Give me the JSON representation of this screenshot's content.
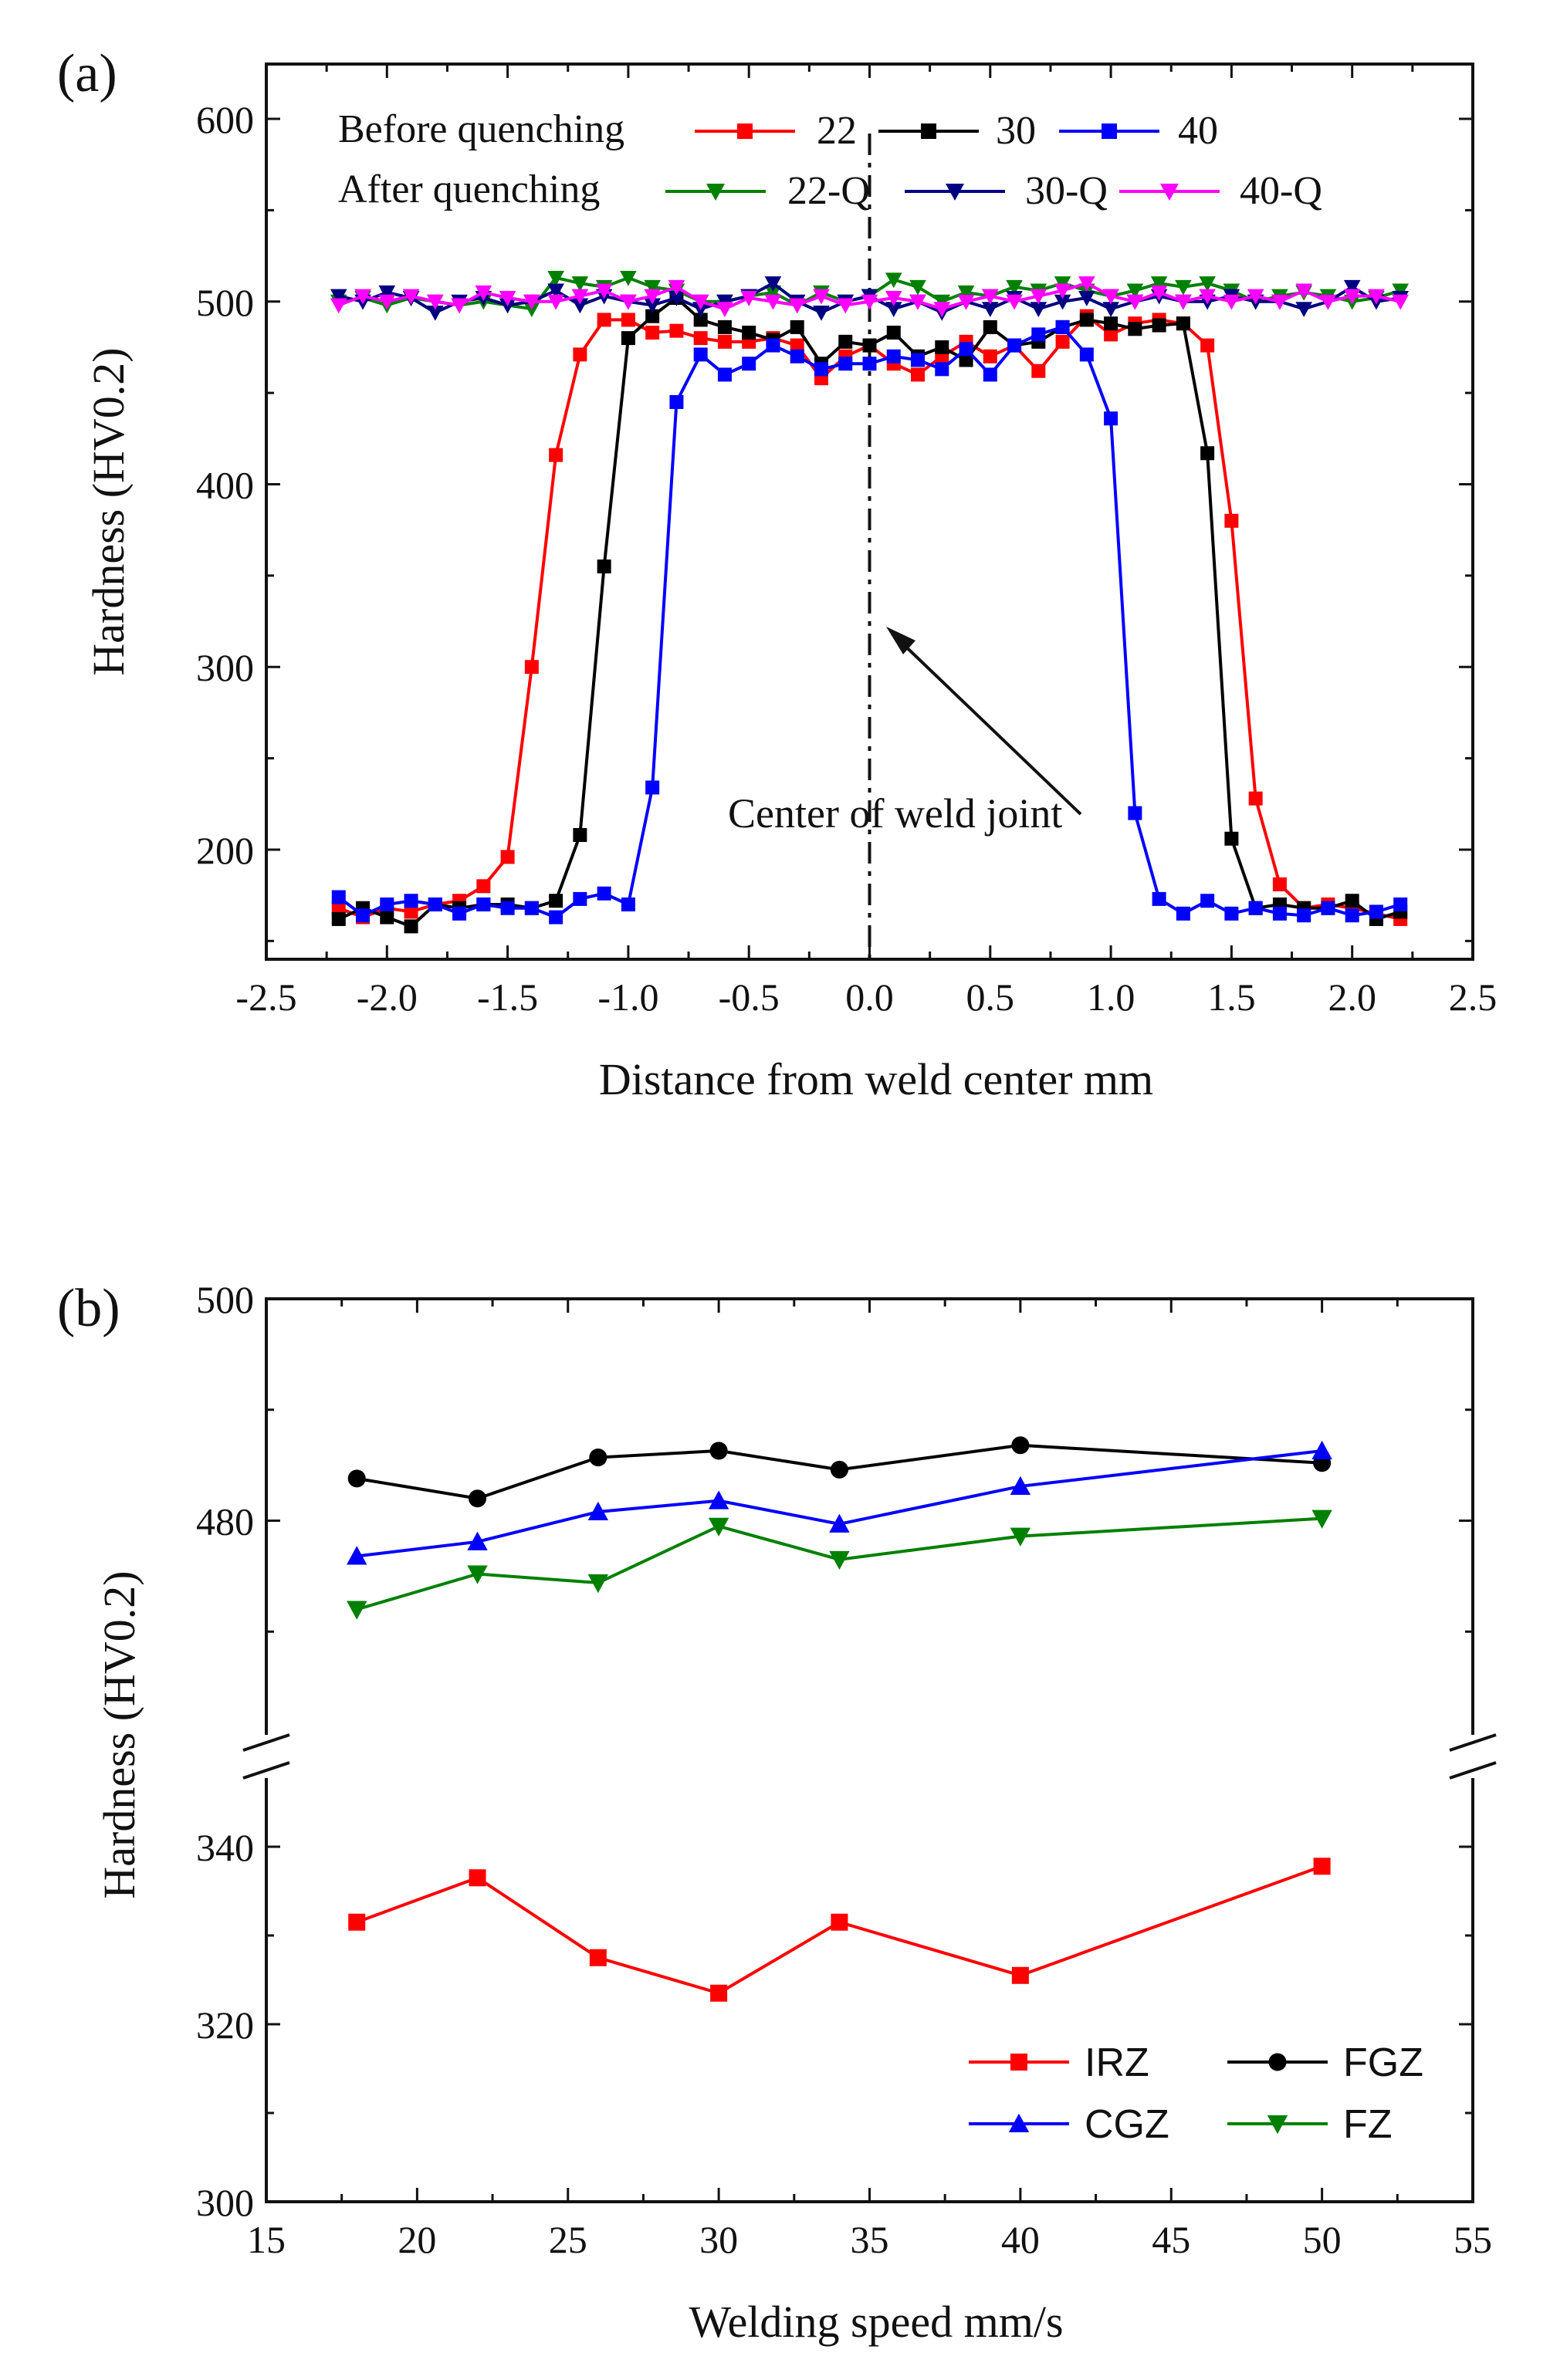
{
  "chart_data": [
    {
      "panel_label": "(a)",
      "type": "line",
      "xlabel": "Distance from weld center  mm",
      "ylabel": "Hardness (HV0.2)",
      "xlim": [
        -2.5,
        2.5
      ],
      "ylim": [
        140,
        630
      ],
      "xticks": [
        "-2.5",
        "-2.0",
        "-1.5",
        "-1.0",
        "-0.5",
        "0.0",
        "0.5",
        "1.0",
        "1.5",
        "2.0",
        "2.5"
      ],
      "yticks": [
        "200",
        "300",
        "400",
        "500",
        "600"
      ],
      "legend_groups": [
        {
          "title": "Before quenching",
          "series": [
            "22",
            "30",
            "40"
          ]
        },
        {
          "title": "After quenching",
          "series": [
            "22-Q",
            "30-Q",
            "40-Q"
          ]
        }
      ],
      "annotation": "Center of weld joint",
      "center_line_x": 0.0,
      "x": [
        -2.2,
        -2.1,
        -2.0,
        -1.9,
        -1.8,
        -1.7,
        -1.6,
        -1.5,
        -1.4,
        -1.3,
        -1.2,
        -1.1,
        -1.0,
        -0.9,
        -0.8,
        -0.7,
        -0.6,
        -0.5,
        -0.4,
        -0.3,
        -0.2,
        -0.1,
        0.0,
        0.1,
        0.2,
        0.3,
        0.4,
        0.5,
        0.6,
        0.7,
        0.8,
        0.9,
        1.0,
        1.1,
        1.2,
        1.3,
        1.4,
        1.5,
        1.6,
        1.7,
        1.8,
        1.9,
        2.0,
        2.1,
        2.2
      ],
      "series": [
        {
          "name": "22",
          "color": "#ff0000",
          "marker": "square",
          "values": [
            168,
            163,
            168,
            166,
            170,
            172,
            180,
            196,
            300,
            416,
            471,
            490,
            490,
            483,
            484,
            480,
            478,
            478,
            480,
            476,
            458,
            470,
            476,
            466,
            460,
            470,
            478,
            470,
            476,
            462,
            478,
            492,
            482,
            488,
            490,
            488,
            476,
            380,
            228,
            181,
            168,
            170,
            168,
            165,
            162
          ]
        },
        {
          "name": "30",
          "color": "#000000",
          "marker": "square",
          "values": [
            162,
            168,
            163,
            158,
            170,
            168,
            170,
            170,
            168,
            172,
            208,
            355,
            480,
            492,
            502,
            490,
            486,
            483,
            479,
            486,
            466,
            478,
            476,
            483,
            470,
            475,
            468,
            486,
            476,
            478,
            486,
            490,
            488,
            485,
            487,
            488,
            417,
            206,
            168,
            170,
            168,
            168,
            172,
            162,
            166
          ]
        },
        {
          "name": "40",
          "color": "#0000ff",
          "marker": "square",
          "values": [
            174,
            164,
            170,
            172,
            170,
            165,
            170,
            168,
            168,
            163,
            173,
            176,
            170,
            234,
            445,
            471,
            460,
            466,
            476,
            470,
            463,
            466,
            466,
            470,
            468,
            463,
            474,
            460,
            476,
            482,
            486,
            471,
            436,
            220,
            173,
            165,
            172,
            165,
            168,
            165,
            164,
            168,
            164,
            166,
            170
          ]
        },
        {
          "name": "22-Q",
          "color": "#008000",
          "marker": "triangle-down",
          "values": [
            500,
            502,
            498,
            502,
            500,
            498,
            500,
            498,
            496,
            513,
            510,
            508,
            513,
            508,
            506,
            500,
            500,
            503,
            505,
            498,
            505,
            500,
            503,
            512,
            508,
            500,
            505,
            503,
            508,
            506,
            510,
            506,
            503,
            506,
            510,
            508,
            510,
            506,
            500,
            503,
            505,
            503,
            500,
            502,
            506
          ]
        },
        {
          "name": "30-Q",
          "color": "#000080",
          "marker": "triangle-down",
          "values": [
            503,
            500,
            505,
            502,
            494,
            500,
            502,
            498,
            500,
            506,
            498,
            503,
            500,
            498,
            502,
            496,
            500,
            503,
            510,
            500,
            494,
            500,
            503,
            496,
            500,
            494,
            500,
            496,
            502,
            496,
            500,
            502,
            496,
            500,
            503,
            500,
            500,
            503,
            500,
            500,
            496,
            500,
            508,
            500,
            502
          ]
        },
        {
          "name": "40-Q",
          "color": "#ff00ff",
          "marker": "triangle-down",
          "values": [
            498,
            503,
            500,
            503,
            500,
            498,
            505,
            502,
            500,
            500,
            503,
            506,
            500,
            503,
            508,
            500,
            496,
            502,
            500,
            498,
            503,
            498,
            500,
            502,
            500,
            496,
            500,
            503,
            500,
            503,
            506,
            510,
            503,
            500,
            505,
            500,
            503,
            500,
            503,
            500,
            506,
            500,
            503,
            503,
            500
          ]
        }
      ]
    },
    {
      "panel_label": "(b)",
      "type": "line",
      "xlabel": "Welding speed   mm/s",
      "ylabel": "Hardness   (HV0.2)",
      "xlim": [
        15,
        55
      ],
      "xticks": [
        "15",
        "20",
        "25",
        "30",
        "35",
        "40",
        "45",
        "50",
        "55"
      ],
      "broken_axis": {
        "upper_range": [
          460,
          500
        ],
        "lower_range": [
          300,
          350
        ],
        "upper_ticks": [
          "480",
          "500"
        ],
        "lower_ticks": [
          "300",
          "320",
          "340"
        ]
      },
      "legend_placement": "bottom-right",
      "x": [
        18,
        22,
        26,
        30,
        34,
        40,
        50
      ],
      "series": [
        {
          "name": "IRZ",
          "color": "#ff0000",
          "marker": "square",
          "values": [
            331.5,
            336.5,
            327.5,
            323.5,
            331.5,
            325.5,
            337.8
          ]
        },
        {
          "name": "FGZ",
          "color": "#000000",
          "marker": "circle",
          "values": [
            483.8,
            482.0,
            485.7,
            486.3,
            484.6,
            486.8,
            485.2
          ]
        },
        {
          "name": "CGZ",
          "color": "#0000ff",
          "marker": "triangle-up",
          "values": [
            476.8,
            478.1,
            480.8,
            481.8,
            479.7,
            483.1,
            486.3
          ]
        },
        {
          "name": "FZ",
          "color": "#008000",
          "marker": "triangle-down",
          "values": [
            472.0,
            475.2,
            474.4,
            479.5,
            476.5,
            478.6,
            480.2
          ]
        }
      ]
    }
  ]
}
